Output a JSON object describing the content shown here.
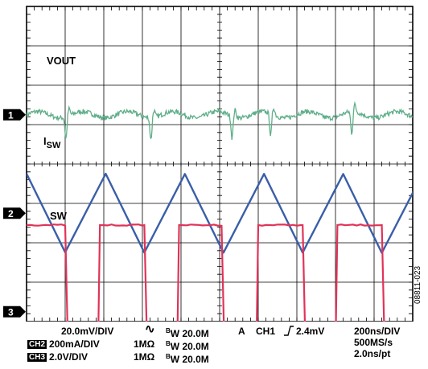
{
  "figure_id": "08811-023",
  "colors": {
    "vout": "#5fae8a",
    "isw": "#3a5ea8",
    "sw": "#e03358",
    "grid": "#000000"
  },
  "chart_data": {
    "type": "line",
    "grid": {
      "x_divisions": 10,
      "y_divisions": 8,
      "minor_ticks_per_division": 5
    },
    "channel_markers": [
      "1",
      "2",
      "3"
    ],
    "series": [
      {
        "name": "VOUT",
        "channel": 1,
        "ground_div": 5.25,
        "volts_per_div": "20.0mV/DIV",
        "shape": "ripple with spikes at switching edges",
        "spike_times_div": [
          1.0,
          3.2,
          5.3,
          6.3,
          8.4,
          10.5
        ],
        "ripple_div": 0.12
      },
      {
        "name": "I",
        "name_sub": "SW",
        "channel": 2,
        "ground_div": 2.75,
        "amps_per_div": "200mA/DIV",
        "shape": "triangle",
        "peaks_time_div": [
          0.0,
          2.05,
          4.1,
          6.15,
          8.2,
          10.25
        ],
        "valleys_time_div": [
          1.0,
          3.05,
          5.1,
          7.15,
          9.2
        ],
        "peak_div": 3.75,
        "valley_div": 1.75
      },
      {
        "name": "SW",
        "channel": 3,
        "ground_div": 0.25,
        "volts_per_div": "2.0V/DIV",
        "shape": "square",
        "edges_time_div": [
          [
            0.0,
            1.0
          ],
          [
            1.9,
            3.05
          ],
          [
            3.95,
            5.05
          ],
          [
            6.0,
            7.15
          ],
          [
            8.05,
            9.2
          ],
          [
            10.1,
            11
          ]
        ],
        "high_div": 2.45,
        "low_div": -0.25
      }
    ]
  },
  "settings": {
    "ch1": {
      "tag": "",
      "scale": "20.0mV/DIV",
      "coupling_icon": "∿",
      "bw_label": "W 20.0M",
      "bw_prefix": "B"
    },
    "ch2": {
      "tag": "CH2",
      "scale": "200mA/DIV",
      "impedance": "1MΩ",
      "bw_label": "W 20.0M",
      "bw_prefix": "B"
    },
    "ch3": {
      "tag": "CH3",
      "scale": "2.0V/DIV",
      "impedance": "1MΩ",
      "bw_label": "W 20.0M",
      "bw_prefix": "B"
    },
    "trigger": {
      "mode": "A",
      "source": "CH1",
      "slope_icon": "rising-edge",
      "level": "2.4mV"
    },
    "timebase": {
      "time_per_div": "200ns/DIV",
      "sample_rate": "500MS/s",
      "resolution": "2.0ns/pt"
    }
  }
}
